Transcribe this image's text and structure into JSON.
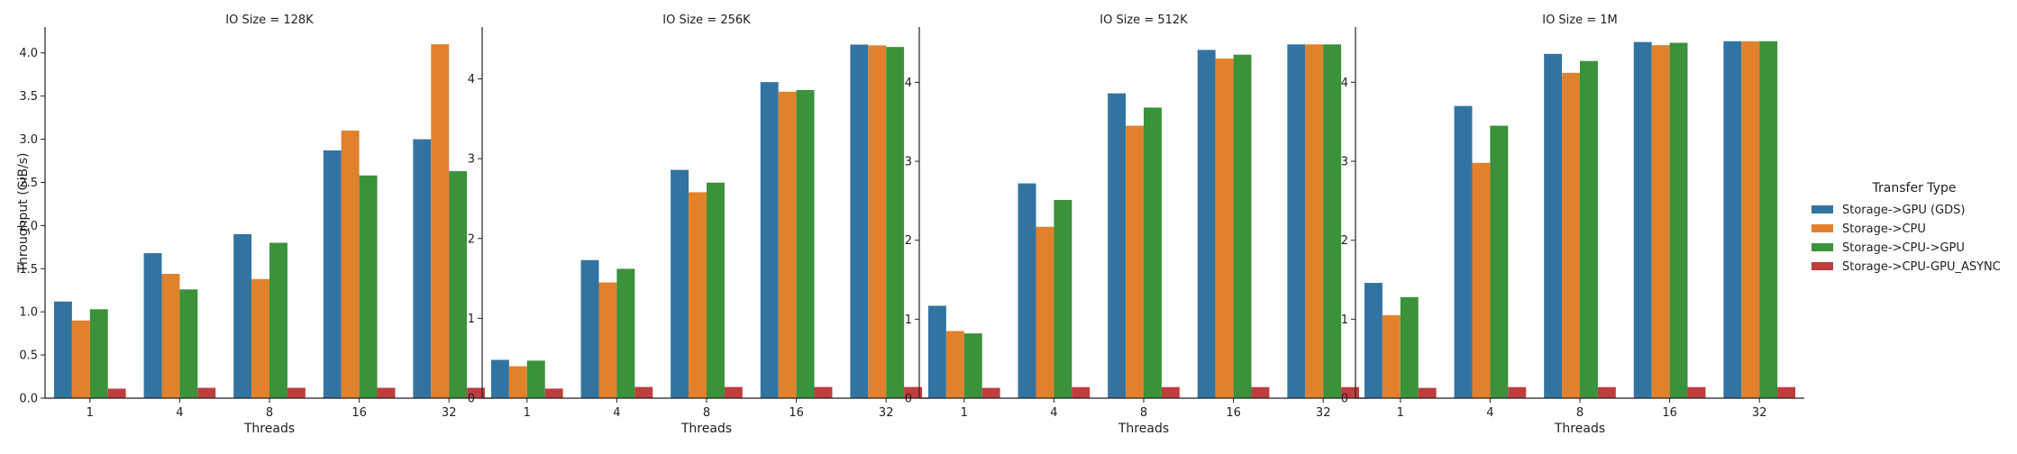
{
  "chart_data": {
    "type": "bar",
    "ylabel": "Throughput (GiB/s)",
    "xlabel": "Threads",
    "categories": [
      "1",
      "4",
      "8",
      "16",
      "32"
    ],
    "legend": {
      "title": "Transfer Type",
      "placement": "right",
      "series_names": [
        "Storage->GPU (GDS)",
        "Storage->CPU",
        "Storage->CPU->GPU",
        "Storage->CPU-GPU_ASYNC"
      ],
      "colors": [
        "#3274a1",
        "#e1812c",
        "#3a923a",
        "#c03d3e"
      ]
    },
    "panels": [
      {
        "title": "IO Size = 128K",
        "ylim": [
          0,
          4.3
        ],
        "yticks": [
          0.0,
          0.5,
          1.0,
          1.5,
          2.0,
          2.5,
          3.0,
          3.5,
          4.0
        ],
        "ytick_labels": [
          "0.0",
          "0.5",
          "1.0",
          "1.5",
          "2.0",
          "2.5",
          "3.0",
          "3.5",
          "4.0"
        ],
        "series": [
          {
            "name": "Storage->GPU (GDS)",
            "values": [
              1.12,
              1.68,
              1.9,
              2.87,
              3.0
            ]
          },
          {
            "name": "Storage->CPU",
            "values": [
              0.9,
              1.44,
              1.38,
              3.1,
              4.1
            ]
          },
          {
            "name": "Storage->CPU->GPU",
            "values": [
              1.03,
              1.26,
              1.8,
              2.58,
              2.63
            ]
          },
          {
            "name": "Storage->CPU-GPU_ASYNC",
            "values": [
              0.11,
              0.12,
              0.12,
              0.12,
              0.12
            ]
          }
        ]
      },
      {
        "title": "IO Size = 256K",
        "ylim": [
          0,
          4.65
        ],
        "yticks": [
          0,
          1,
          2,
          3,
          4
        ],
        "ytick_labels": [
          "0",
          "1",
          "2",
          "3",
          "4"
        ],
        "series": [
          {
            "name": "Storage->GPU (GDS)",
            "values": [
              0.48,
              1.73,
              2.86,
              3.96,
              4.43
            ]
          },
          {
            "name": "Storage->CPU",
            "values": [
              0.4,
              1.45,
              2.58,
              3.84,
              4.42
            ]
          },
          {
            "name": "Storage->CPU->GPU",
            "values": [
              0.47,
              1.62,
              2.7,
              3.86,
              4.4
            ]
          },
          {
            "name": "Storage->CPU-GPU_ASYNC",
            "values": [
              0.12,
              0.14,
              0.14,
              0.14,
              0.14
            ]
          }
        ]
      },
      {
        "title": "IO Size = 512K",
        "ylim": [
          0,
          4.7
        ],
        "yticks": [
          0,
          1,
          2,
          3,
          4
        ],
        "ytick_labels": [
          "0",
          "1",
          "2",
          "3",
          "4"
        ],
        "series": [
          {
            "name": "Storage->GPU (GDS)",
            "values": [
              1.17,
              2.72,
              3.86,
              4.41,
              4.48
            ]
          },
          {
            "name": "Storage->CPU",
            "values": [
              0.85,
              2.17,
              3.45,
              4.3,
              4.48
            ]
          },
          {
            "name": "Storage->CPU->GPU",
            "values": [
              0.82,
              2.51,
              3.68,
              4.35,
              4.48
            ]
          },
          {
            "name": "Storage->CPU-GPU_ASYNC",
            "values": [
              0.13,
              0.14,
              0.14,
              0.14,
              0.14
            ]
          }
        ]
      },
      {
        "title": "IO Size = 1M",
        "ylim": [
          0,
          4.7
        ],
        "yticks": [
          0,
          1,
          2,
          3,
          4
        ],
        "ytick_labels": [
          "0",
          "1",
          "2",
          "3",
          "4"
        ],
        "series": [
          {
            "name": "Storage->GPU (GDS)",
            "values": [
              1.46,
              3.7,
              4.36,
              4.51,
              4.52
            ]
          },
          {
            "name": "Storage->CPU",
            "values": [
              1.05,
              2.98,
              4.12,
              4.47,
              4.52
            ]
          },
          {
            "name": "Storage->CPU->GPU",
            "values": [
              1.28,
              3.45,
              4.27,
              4.5,
              4.52
            ]
          },
          {
            "name": "Storage->CPU-GPU_ASYNC",
            "values": [
              0.13,
              0.14,
              0.14,
              0.14,
              0.14
            ]
          }
        ]
      }
    ]
  }
}
